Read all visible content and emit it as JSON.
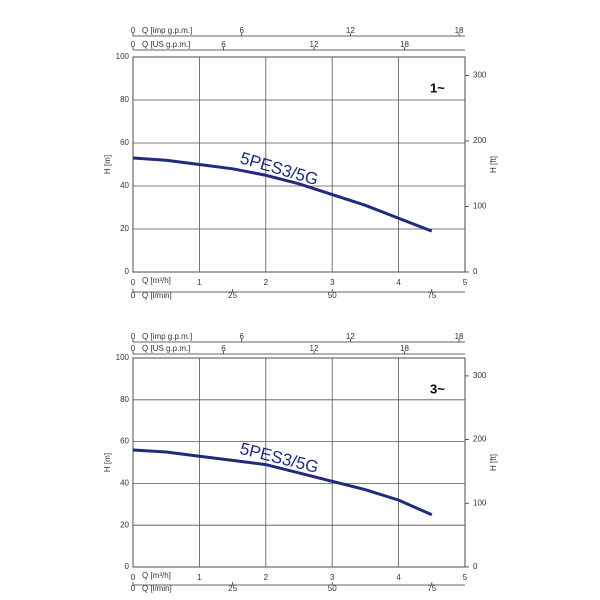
{
  "chart_data": [
    {
      "type": "line",
      "annotation": "1~",
      "grid": true,
      "ylabel": "H [m]",
      "ylim": [
        0,
        100
      ],
      "yticks": [
        0,
        20,
        40,
        60,
        80,
        100
      ],
      "y2label": "H [ft]",
      "y2lim": [
        0,
        328.08
      ],
      "y2ticks": [
        0,
        100,
        200,
        300
      ],
      "xlabel": "Q [m³/h]",
      "xlim": [
        0,
        5
      ],
      "xticks": [
        0,
        1,
        2,
        3,
        4,
        5
      ],
      "secondary_x_axes": [
        {
          "label": "Q [imp g.p.m.]",
          "position": "top",
          "lim": [
            0,
            18.33
          ],
          "ticks": [
            0,
            6,
            12,
            18
          ]
        },
        {
          "label": "Q [US g.p.m.]",
          "position": "top",
          "lim": [
            0,
            22.01
          ],
          "ticks": [
            0,
            6,
            12,
            18
          ]
        },
        {
          "label": "Q [l/min]",
          "position": "bottom",
          "lim": [
            0,
            83.33
          ],
          "ticks": [
            0,
            25,
            50,
            75
          ]
        }
      ],
      "x": [
        0,
        0.5,
        1,
        1.5,
        2,
        2.5,
        3,
        3.5,
        4,
        4.5
      ],
      "series": [
        {
          "name": "5PES3/5G",
          "color": "#1f2a80",
          "values": [
            53,
            52,
            50,
            48,
            45,
            41,
            36,
            31,
            25,
            19
          ]
        }
      ]
    },
    {
      "type": "line",
      "annotation": "3~",
      "grid": true,
      "ylabel": "H [m]",
      "ylim": [
        0,
        100
      ],
      "yticks": [
        0,
        20,
        40,
        60,
        80,
        100
      ],
      "y2label": "H [ft]",
      "y2lim": [
        0,
        328.08
      ],
      "y2ticks": [
        0,
        100,
        200,
        300
      ],
      "xlabel": "Q [m³/h]",
      "xlim": [
        0,
        5
      ],
      "xticks": [
        0,
        1,
        2,
        3,
        4,
        5
      ],
      "secondary_x_axes": [
        {
          "label": "Q [imp g.p.m.]",
          "position": "top",
          "lim": [
            0,
            18.33
          ],
          "ticks": [
            0,
            6,
            12,
            18
          ]
        },
        {
          "label": "Q [US g.p.m.]",
          "position": "top",
          "lim": [
            0,
            22.01
          ],
          "ticks": [
            0,
            6,
            12,
            18
          ]
        },
        {
          "label": "Q [l/min]",
          "position": "bottom",
          "lim": [
            0,
            83.33
          ],
          "ticks": [
            0,
            25,
            50,
            75
          ]
        }
      ],
      "x": [
        0,
        0.5,
        1,
        1.5,
        2,
        2.5,
        3,
        3.5,
        4,
        4.5
      ],
      "series": [
        {
          "name": "5PES3/5G",
          "color": "#1f2a80",
          "values": [
            56,
            55,
            53,
            51,
            49,
            45,
            41,
            37,
            32,
            25
          ]
        }
      ]
    }
  ]
}
